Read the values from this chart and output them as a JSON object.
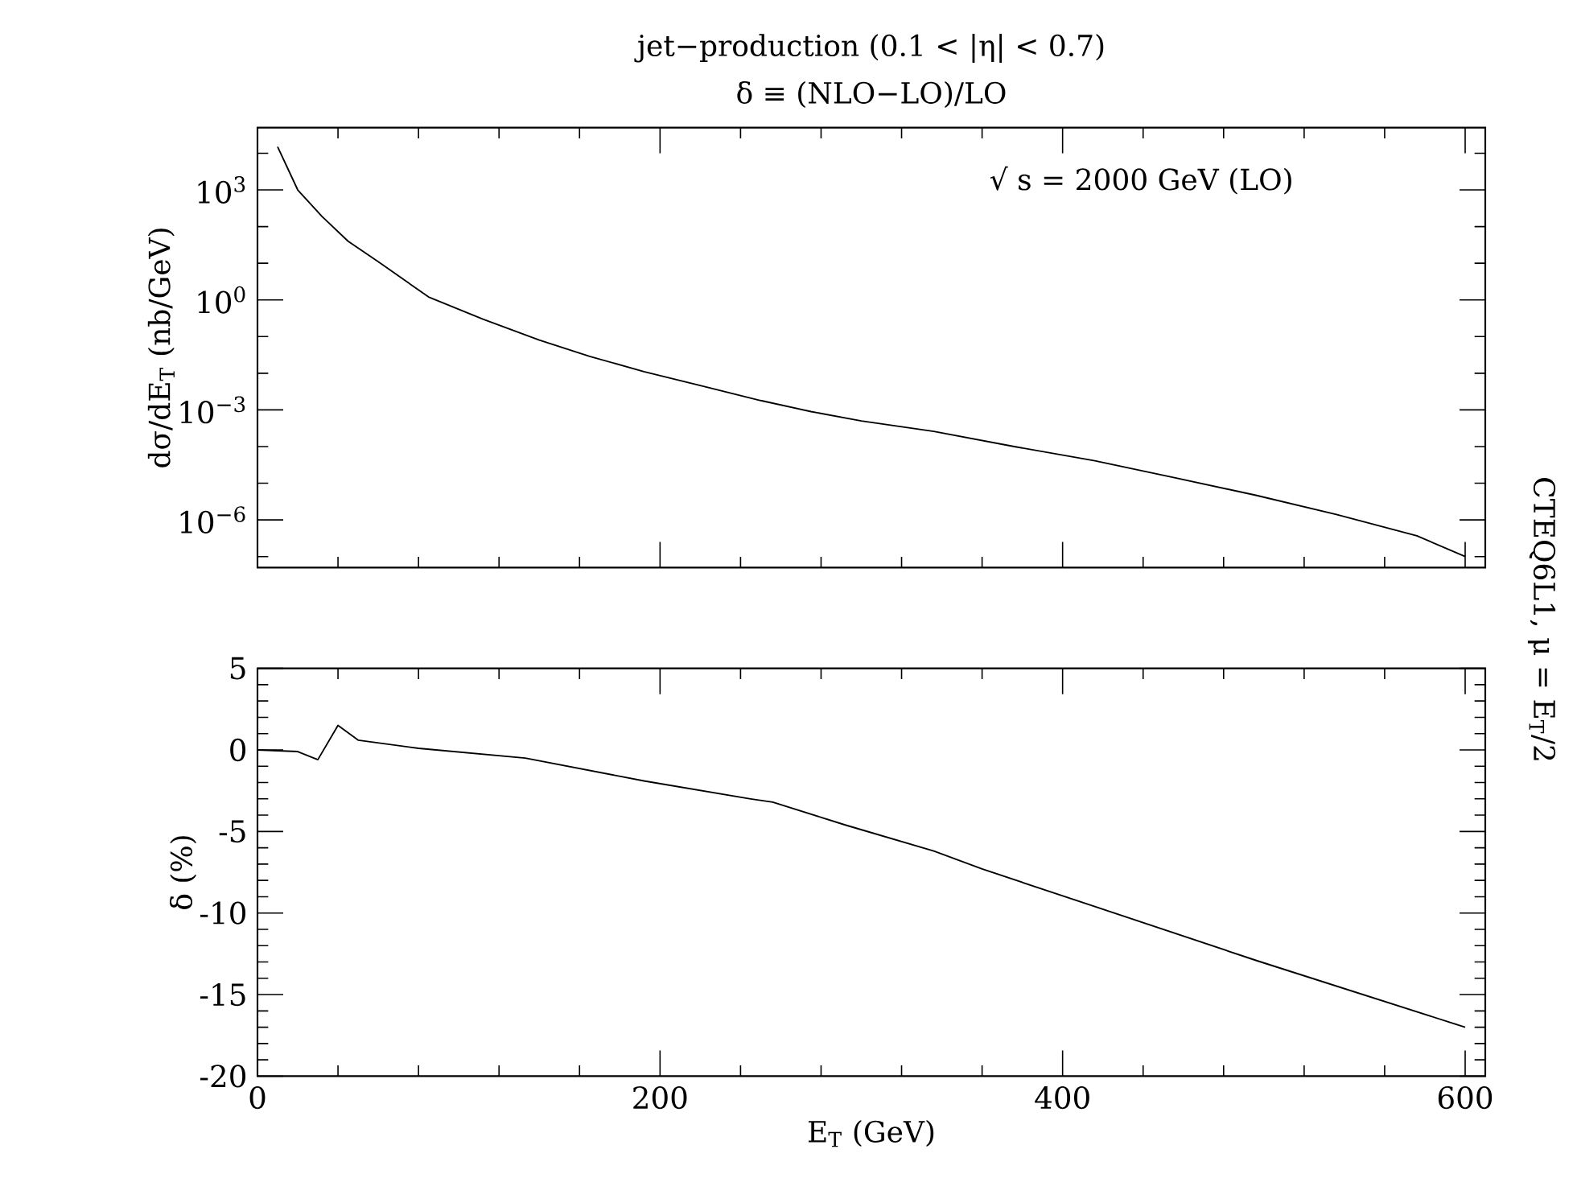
{
  "chart_data": [
    {
      "type": "line",
      "title": "jet−production (0.1 < |η| < 0.7)",
      "subtitle": "δ ≡ (NLO−LO)/LO",
      "ylabel": "dσ/dE$_{T}$ (nb/GeV)",
      "annotations": [
        "√ s = 2000 GeV (LO)",
        "CTEQ6L1, μ = E$_{T}$/2"
      ],
      "x": [
        10,
        20,
        32,
        45,
        60,
        85,
        112,
        140,
        165,
        192,
        220,
        250,
        275,
        300,
        336,
        376,
        416,
        456,
        496,
        536,
        576,
        600
      ],
      "series": [
        {
          "color": "#000000",
          "values": [
            15000,
            1000,
            190,
            40,
            11,
            1.2,
            0.3,
            0.08,
            0.029,
            0.011,
            0.0046,
            0.0018,
            0.0009,
            0.0005,
            0.00026,
            0.0001,
            4.1e-05,
            1.4e-05,
            4.7e-06,
            1.4e-06,
            3.7e-07,
            1e-07
          ]
        }
      ],
      "log": "y",
      "xlim": [
        0,
        610
      ],
      "ylim": [
        5e-08,
        50000
      ],
      "xticks": [
        0,
        200,
        400,
        600
      ],
      "yticks": [
        {
          "value": 10000,
          "label": null
        },
        {
          "value": 1000,
          "label": "10$^{3}$"
        },
        {
          "value": 100,
          "label": null
        },
        {
          "value": 10,
          "label": null
        },
        {
          "value": 1,
          "label": "10$^{0}$"
        },
        {
          "value": 0.1,
          "label": null
        },
        {
          "value": 0.01,
          "label": null
        },
        {
          "value": 0.001,
          "label": "10$^{−3}$"
        },
        {
          "value": 0.0001,
          "label": null
        },
        {
          "value": 1e-05,
          "label": null
        },
        {
          "value": 1e-06,
          "label": "10$^{−6}$"
        },
        {
          "value": 1e-07,
          "label": null
        }
      ],
      "tick_labels": "y"
    },
    {
      "type": "line",
      "xlabel": "E$_{T}$ (GeV)",
      "ylabel": "δ (%)",
      "x": [
        0,
        20,
        30,
        40,
        50,
        80,
        133,
        192,
        245,
        256,
        292,
        336,
        360,
        416,
        496,
        600
      ],
      "series": [
        {
          "color": "#000000",
          "values": [
            0,
            -0.1,
            -0.6,
            1.5,
            0.6,
            0.1,
            -0.5,
            -1.9,
            -3.0,
            -3.2,
            -4.6,
            -6.2,
            -7.3,
            -9.6,
            -12.9,
            -17.0
          ]
        }
      ],
      "xlim": [
        0,
        610
      ],
      "ylim": [
        -20,
        5
      ],
      "xticks": [
        0,
        200,
        400,
        600
      ],
      "yticks": [
        -20,
        -15,
        -10,
        -5,
        0,
        5
      ]
    }
  ]
}
